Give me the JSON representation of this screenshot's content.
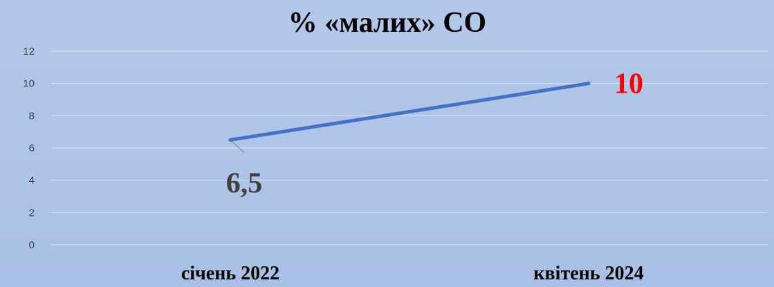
{
  "chart_data": {
    "type": "line",
    "title": "% «малих» СО",
    "categories": [
      "січень 2022",
      "квітень 2024"
    ],
    "series": [
      {
        "values": [
          6.5,
          10
        ],
        "data_labels": [
          "6,5",
          "10"
        ],
        "label_colors": [
          "#3f3f3f",
          "#ff0000"
        ]
      }
    ],
    "yticks": [
      "0",
      "2",
      "4",
      "6",
      "8",
      "10",
      "12"
    ],
    "ylim": [
      0,
      12
    ],
    "grid": true,
    "legend": "none",
    "colors": {
      "line": "#4472c4",
      "grid": "#d6dff0",
      "leader": "#8c8c8c"
    }
  }
}
